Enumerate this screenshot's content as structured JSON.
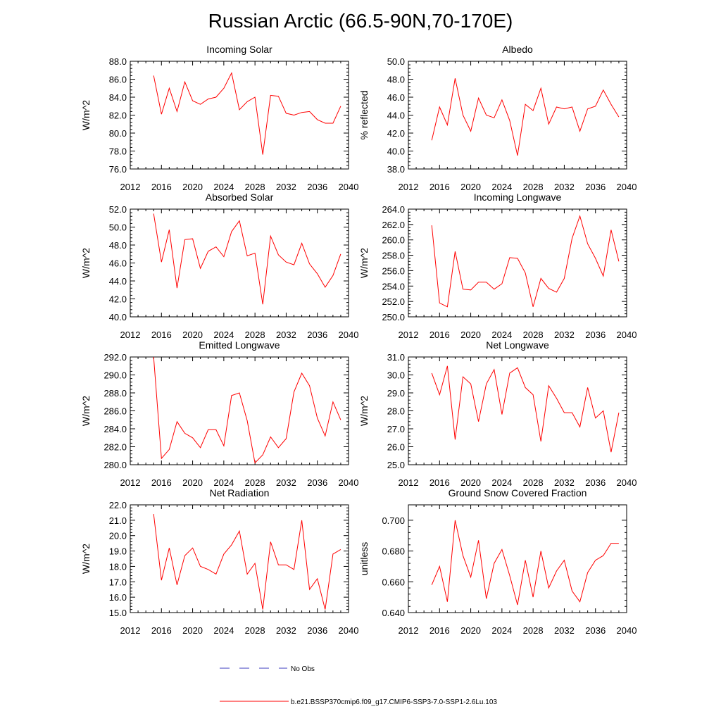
{
  "title": "Russian Arctic (66.5-90N,70-170E)",
  "colors": {
    "model_line": "#ff0000",
    "obs_line": "#3b3bbf",
    "axis": "#000000"
  },
  "legend": {
    "obs_label": "No Obs",
    "model_label": "b.e21.BSSP370cmip6.f09_g17.CMIP6-SSP3-7.0-SSP1-2.6Lu.103"
  },
  "chart_data": [
    {
      "type": "line",
      "title": "Incoming Solar",
      "ylabel": "W/m^2",
      "xlim": [
        2012,
        2040
      ],
      "ylim": [
        76,
        88
      ],
      "x_ticks": [
        2012,
        2016,
        2020,
        2024,
        2028,
        2032,
        2036,
        2040
      ],
      "y_ticks": [
        "76.0",
        "78.0",
        "80.0",
        "82.0",
        "84.0",
        "86.0",
        "88.0"
      ],
      "x": [
        2015,
        2016,
        2017,
        2018,
        2019,
        2020,
        2021,
        2022,
        2023,
        2024,
        2025,
        2026,
        2027,
        2028,
        2029,
        2030,
        2031,
        2032,
        2033,
        2034,
        2035,
        2036,
        2037,
        2038,
        2039
      ],
      "values": [
        86.4,
        82.1,
        85.0,
        82.4,
        85.7,
        83.6,
        83.2,
        83.8,
        84.0,
        85.0,
        86.7,
        82.6,
        83.5,
        84.0,
        77.6,
        84.2,
        84.1,
        82.2,
        82.0,
        82.3,
        82.4,
        81.5,
        81.1,
        81.1,
        83.0
      ]
    },
    {
      "type": "line",
      "title": "Albedo",
      "ylabel": "% reflected",
      "xlim": [
        2012,
        2040
      ],
      "ylim": [
        38,
        50
      ],
      "x_ticks": [
        2012,
        2016,
        2020,
        2024,
        2028,
        2032,
        2036,
        2040
      ],
      "y_ticks": [
        "38.0",
        "40.0",
        "42.0",
        "44.0",
        "46.0",
        "48.0",
        "50.0"
      ],
      "x": [
        2015,
        2016,
        2017,
        2018,
        2019,
        2020,
        2021,
        2022,
        2023,
        2024,
        2025,
        2026,
        2027,
        2028,
        2029,
        2030,
        2031,
        2032,
        2033,
        2034,
        2035,
        2036,
        2037,
        2038,
        2039
      ],
      "values": [
        41.2,
        44.9,
        42.9,
        48.1,
        44.0,
        42.2,
        45.9,
        44.0,
        43.7,
        45.7,
        43.4,
        39.5,
        45.2,
        44.5,
        47.0,
        43.0,
        44.9,
        44.7,
        44.9,
        42.2,
        44.7,
        45.0,
        46.8,
        45.2,
        43.8
      ]
    },
    {
      "type": "line",
      "title": "Absorbed Solar",
      "ylabel": "W/m^2",
      "xlim": [
        2012,
        2040
      ],
      "ylim": [
        40,
        52
      ],
      "x_ticks": [
        2012,
        2016,
        2020,
        2024,
        2028,
        2032,
        2036,
        2040
      ],
      "y_ticks": [
        "40.0",
        "42.0",
        "44.0",
        "46.0",
        "48.0",
        "50.0",
        "52.0"
      ],
      "x": [
        2015,
        2016,
        2017,
        2018,
        2019,
        2020,
        2021,
        2022,
        2023,
        2024,
        2025,
        2026,
        2027,
        2028,
        2029,
        2030,
        2031,
        2032,
        2033,
        2034,
        2035,
        2036,
        2037,
        2038,
        2039
      ],
      "values": [
        51.5,
        46.1,
        49.7,
        43.2,
        48.6,
        48.7,
        45.4,
        47.3,
        47.8,
        46.7,
        49.5,
        50.7,
        46.8,
        47.1,
        41.4,
        49.0,
        46.9,
        46.1,
        45.8,
        48.2,
        45.9,
        44.8,
        43.3,
        44.6,
        47.0
      ]
    },
    {
      "type": "line",
      "title": "Incoming Longwave",
      "ylabel": "W/m^2",
      "xlim": [
        2012,
        2040
      ],
      "ylim": [
        250,
        264
      ],
      "x_ticks": [
        2012,
        2016,
        2020,
        2024,
        2028,
        2032,
        2036,
        2040
      ],
      "y_ticks": [
        "250.0",
        "252.0",
        "254.0",
        "256.0",
        "258.0",
        "260.0",
        "262.0",
        "264.0"
      ],
      "x": [
        2015,
        2016,
        2017,
        2018,
        2019,
        2020,
        2021,
        2022,
        2023,
        2024,
        2025,
        2026,
        2027,
        2028,
        2029,
        2030,
        2031,
        2032,
        2033,
        2034,
        2035,
        2036,
        2037,
        2038,
        2039
      ],
      "values": [
        261.9,
        251.8,
        251.3,
        258.5,
        253.6,
        253.5,
        254.5,
        254.5,
        253.6,
        254.3,
        257.7,
        257.6,
        255.7,
        251.3,
        255.0,
        253.7,
        253.2,
        255.0,
        260.2,
        263.1,
        259.5,
        257.6,
        255.3,
        261.3,
        257.2
      ]
    },
    {
      "type": "line",
      "title": "Emitted Longwave",
      "ylabel": "W/m^2",
      "xlim": [
        2012,
        2040
      ],
      "ylim": [
        280,
        292
      ],
      "x_ticks": [
        2012,
        2016,
        2020,
        2024,
        2028,
        2032,
        2036,
        2040
      ],
      "y_ticks": [
        "280.0",
        "282.0",
        "284.0",
        "286.0",
        "288.0",
        "290.0",
        "292.0"
      ],
      "x": [
        2015,
        2016,
        2017,
        2018,
        2019,
        2020,
        2021,
        2022,
        2023,
        2024,
        2025,
        2026,
        2027,
        2028,
        2029,
        2030,
        2031,
        2032,
        2033,
        2034,
        2035,
        2036,
        2037,
        2038,
        2039
      ],
      "values": [
        292.0,
        280.7,
        281.7,
        284.8,
        283.5,
        283.0,
        281.9,
        283.9,
        283.9,
        282.1,
        287.7,
        288.0,
        284.9,
        280.2,
        281.1,
        283.1,
        281.9,
        282.9,
        288.1,
        290.2,
        288.8,
        285.2,
        283.2,
        287.0,
        285.0
      ]
    },
    {
      "type": "line",
      "title": "Net Longwave",
      "ylabel": "W/m^2",
      "xlim": [
        2012,
        2040
      ],
      "ylim": [
        25,
        31
      ],
      "x_ticks": [
        2012,
        2016,
        2020,
        2024,
        2028,
        2032,
        2036,
        2040
      ],
      "y_ticks": [
        "25.0",
        "26.0",
        "27.0",
        "28.0",
        "29.0",
        "30.0",
        "31.0"
      ],
      "x": [
        2015,
        2016,
        2017,
        2018,
        2019,
        2020,
        2021,
        2022,
        2023,
        2024,
        2025,
        2026,
        2027,
        2028,
        2029,
        2030,
        2031,
        2032,
        2033,
        2034,
        2035,
        2036,
        2037,
        2038,
        2039
      ],
      "values": [
        30.1,
        28.9,
        30.5,
        26.4,
        29.9,
        29.5,
        27.4,
        29.5,
        30.3,
        27.8,
        30.1,
        30.4,
        29.3,
        28.9,
        26.3,
        29.4,
        28.7,
        27.9,
        27.9,
        27.1,
        29.3,
        27.6,
        28.0,
        25.7,
        27.9
      ]
    },
    {
      "type": "line",
      "title": "Net Radiation",
      "ylabel": "W/m^2",
      "xlim": [
        2012,
        2040
      ],
      "ylim": [
        15,
        22
      ],
      "x_ticks": [
        2012,
        2016,
        2020,
        2024,
        2028,
        2032,
        2036,
        2040
      ],
      "y_ticks": [
        "15.0",
        "16.0",
        "17.0",
        "18.0",
        "19.0",
        "20.0",
        "21.0",
        "22.0"
      ],
      "x": [
        2015,
        2016,
        2017,
        2018,
        2019,
        2020,
        2021,
        2022,
        2023,
        2024,
        2025,
        2026,
        2027,
        2028,
        2029,
        2030,
        2031,
        2032,
        2033,
        2034,
        2035,
        2036,
        2037,
        2038,
        2039
      ],
      "values": [
        21.4,
        17.1,
        19.2,
        16.8,
        18.7,
        19.2,
        18.0,
        17.8,
        17.5,
        18.8,
        19.4,
        20.3,
        17.5,
        18.2,
        15.2,
        19.6,
        18.1,
        18.1,
        17.8,
        21.0,
        16.5,
        17.2,
        15.2,
        18.8,
        19.1
      ]
    },
    {
      "type": "line",
      "title": "Ground Snow Covered Fraction",
      "ylabel": "unitless",
      "xlim": [
        2012,
        2040
      ],
      "ylim": [
        0.64,
        0.71
      ],
      "x_ticks": [
        2012,
        2016,
        2020,
        2024,
        2028,
        2032,
        2036,
        2040
      ],
      "y_ticks": [
        "0.640",
        "0.660",
        "0.680",
        "0.700"
      ],
      "y_tick_values": [
        0.64,
        0.66,
        0.68,
        0.7
      ],
      "x": [
        2015,
        2016,
        2017,
        2018,
        2019,
        2020,
        2021,
        2022,
        2023,
        2024,
        2025,
        2026,
        2027,
        2028,
        2029,
        2030,
        2031,
        2032,
        2033,
        2034,
        2035,
        2036,
        2037,
        2038,
        2039
      ],
      "values": [
        0.658,
        0.67,
        0.647,
        0.7,
        0.677,
        0.663,
        0.687,
        0.649,
        0.672,
        0.681,
        0.664,
        0.645,
        0.674,
        0.65,
        0.68,
        0.656,
        0.667,
        0.674,
        0.654,
        0.647,
        0.666,
        0.674,
        0.677,
        0.685,
        0.685
      ]
    }
  ]
}
